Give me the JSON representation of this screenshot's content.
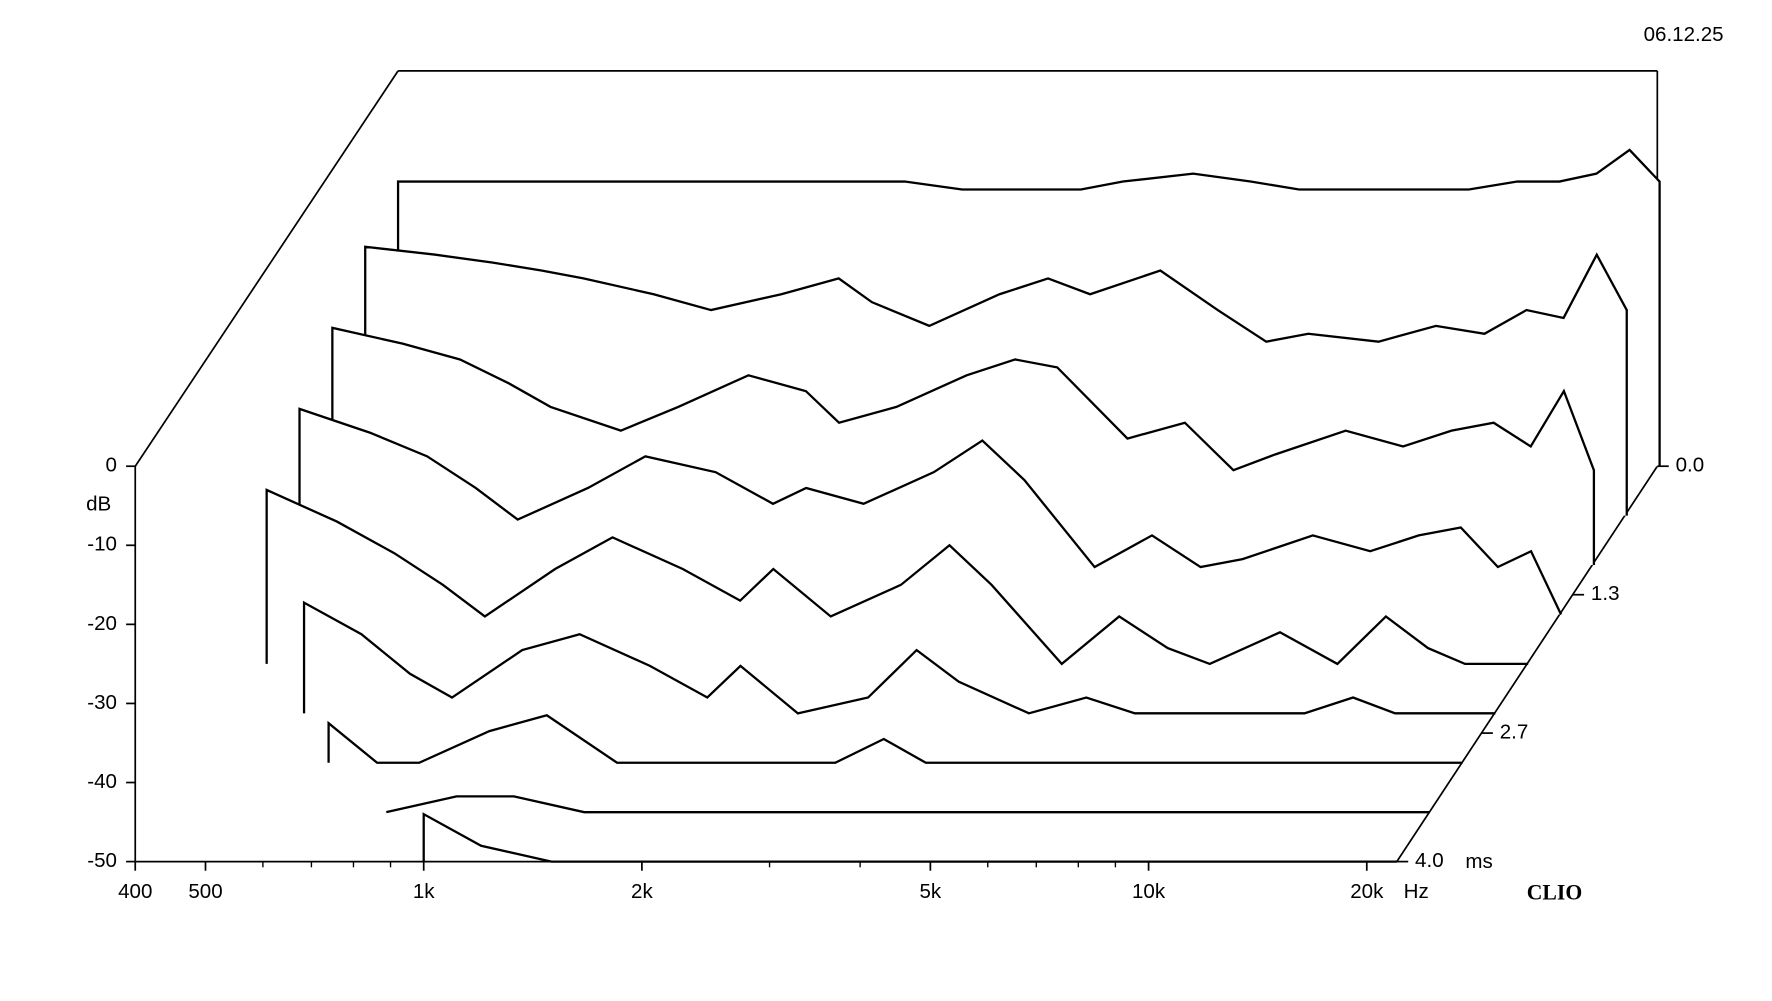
{
  "chart_data": {
    "type": "waterfall",
    "date": "06.12.25",
    "brand": "CLIO",
    "xlabel": "Hz",
    "ylabel": "dB",
    "zlabel": "ms",
    "color": "#000000",
    "xscale": "log",
    "xlim": [
      400,
      22000
    ],
    "xticks": [
      400,
      500,
      {
        "value": 1000,
        "label": "1k"
      },
      {
        "value": 2000,
        "label": "2k"
      },
      {
        "value": 5000,
        "label": "5k"
      },
      {
        "value": 10000,
        "label": "10k"
      },
      {
        "value": 20000,
        "label": "20k"
      }
    ],
    "xminorticks": [
      600,
      700,
      800,
      900,
      3000,
      4000,
      6000,
      7000,
      8000,
      9000
    ],
    "ylim": [
      -50,
      0
    ],
    "yticks": [
      0,
      -10,
      -20,
      -30,
      -40,
      -50
    ],
    "zlim": [
      0,
      4
    ],
    "zticks": [
      {
        "value": 0,
        "label": "0.0"
      },
      1.3,
      2.7,
      {
        "value": 4,
        "label": "4.0"
      }
    ],
    "x": [
      400,
      500,
      600,
      700,
      800,
      1000,
      1200,
      1500,
      1800,
      2000,
      2400,
      3000,
      3500,
      4000,
      5000,
      6000,
      7000,
      8000,
      10000,
      12000,
      14000,
      16000,
      18000,
      20000,
      22000
    ],
    "slices": [
      {
        "time": 0,
        "values": [
          -14,
          -14,
          -14,
          -14,
          -14,
          -14,
          -14,
          -14,
          -14,
          -14,
          -15,
          -15,
          -15,
          -14,
          -13,
          -14,
          -15,
          -15,
          -15,
          -15,
          -14,
          -14,
          -13,
          -10,
          -14
        ]
      },
      {
        "time": 0.5,
        "values": [
          -16,
          -17,
          -18,
          -19,
          -20,
          -22,
          -24,
          -22,
          -20,
          -23,
          -26,
          -22,
          -20,
          -22,
          -19,
          -24,
          -28,
          -27,
          -28,
          -26,
          -27,
          -24,
          -25,
          -17,
          -24
        ]
      },
      {
        "time": 1.0,
        "values": [
          -20,
          -22,
          -24,
          -27,
          -30,
          -33,
          -30,
          -26,
          -28,
          -32,
          -30,
          -26,
          -24,
          -25,
          -34,
          -32,
          -38,
          -36,
          -33,
          -35,
          -33,
          -32,
          -35,
          -28,
          -38
        ]
      },
      {
        "time": 1.5,
        "values": [
          -24,
          -27,
          -30,
          -34,
          -38,
          -34,
          -30,
          -32,
          -36,
          -34,
          -36,
          -32,
          -28,
          -33,
          -44,
          -40,
          -44,
          -43,
          -40,
          -42,
          -40,
          -39,
          -44,
          -42,
          -50
        ]
      },
      {
        "time": 2.0,
        "values": [
          -28,
          -32,
          -36,
          -40,
          -44,
          -38,
          -34,
          -38,
          -42,
          -38,
          -44,
          -40,
          -35,
          -40,
          -50,
          -44,
          -48,
          -50,
          -46,
          -50,
          -44,
          -48,
          -50,
          -50,
          -50
        ]
      },
      {
        "time": 2.5,
        "values": [
          null,
          -36,
          -40,
          -45,
          -48,
          -42,
          -40,
          -44,
          -48,
          -44,
          -50,
          -48,
          -42,
          -46,
          -50,
          -48,
          -50,
          -50,
          -50,
          -50,
          -48,
          -50,
          -50,
          -50,
          -50
        ]
      },
      {
        "time": 3.0,
        "values": [
          null,
          null,
          -45,
          -50,
          -50,
          -46,
          -44,
          -50,
          -50,
          -50,
          -50,
          -50,
          -47,
          -50,
          -50,
          -50,
          -50,
          -50,
          -50,
          -50,
          -50,
          -50,
          -50,
          -50,
          -50
        ]
      },
      {
        "time": 3.5,
        "values": [
          null,
          null,
          null,
          null,
          -50,
          -48,
          -48,
          -50,
          -50,
          -50,
          -50,
          -50,
          -50,
          -50,
          -50,
          -50,
          -50,
          -50,
          -50,
          -50,
          -50,
          -50,
          -50,
          -50,
          -50
        ]
      },
      {
        "time": 4.0,
        "values": [
          null,
          null,
          null,
          null,
          null,
          -44,
          -48,
          -50,
          -50,
          -50,
          -50,
          -50,
          -50,
          -50,
          -50,
          -50,
          -50,
          -50,
          -50,
          -50,
          -50,
          -50,
          -50,
          -50,
          -50
        ]
      }
    ]
  }
}
